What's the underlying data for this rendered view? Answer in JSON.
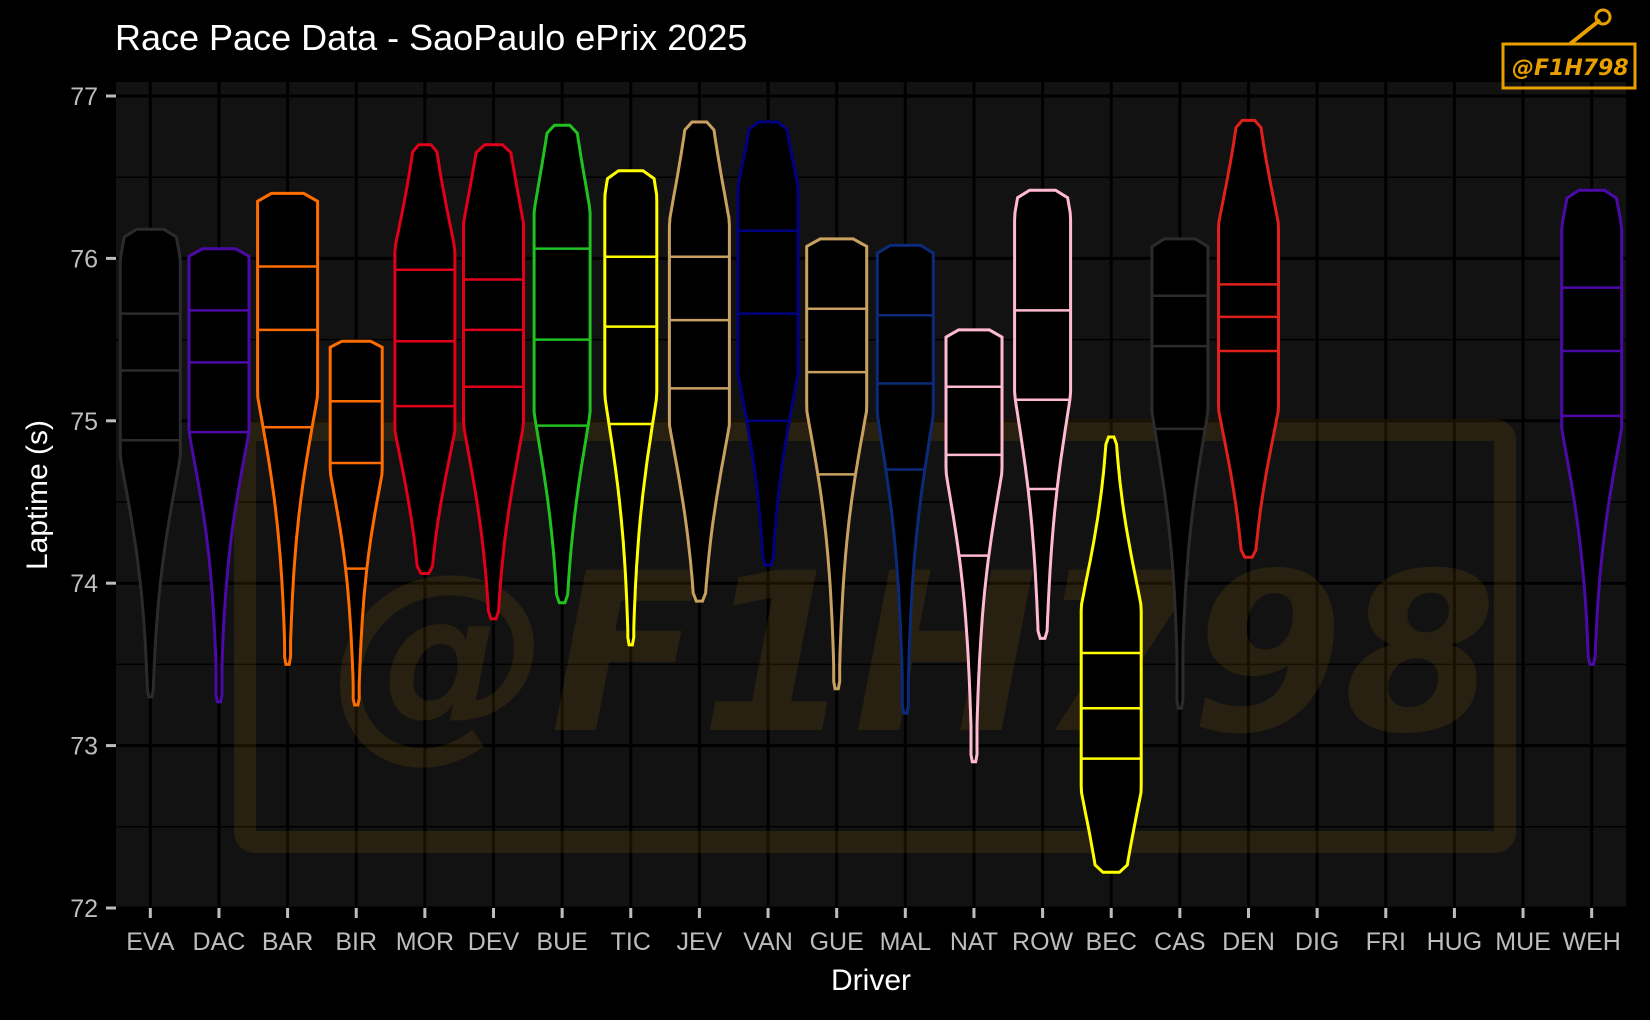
{
  "chart_data": {
    "type": "violin",
    "title": "Race Pace Data - SaoPaulo ePrix 2025",
    "xlabel": "Driver",
    "ylabel": "Laptime (s)",
    "ylim": [
      72,
      77
    ],
    "yticks": [
      72,
      73,
      74,
      75,
      76,
      77
    ],
    "grid": true,
    "categories": [
      "EVA",
      "DAC",
      "BAR",
      "BIR",
      "MOR",
      "DEV",
      "BUE",
      "TIC",
      "JEV",
      "VAN",
      "GUE",
      "MAL",
      "NAT",
      "ROW",
      "BEC",
      "CAS",
      "DEN",
      "DIG",
      "FRI",
      "HUG",
      "MUE",
      "WEH"
    ],
    "series": [
      {
        "driver": "EVA",
        "color": "#2b2b2b",
        "min": 73.3,
        "max": 76.18,
        "q1": 74.88,
        "median": 75.31,
        "q3": 75.66,
        "mode": 75.4,
        "max_half_width": 30
      },
      {
        "driver": "DAC",
        "color": "#4b0aa8",
        "min": 73.27,
        "max": 76.06,
        "q1": 74.93,
        "median": 75.36,
        "q3": 75.68,
        "mode": 75.55,
        "max_half_width": 30
      },
      {
        "driver": "BAR",
        "color": "#ff6d00",
        "min": 73.5,
        "max": 76.4,
        "q1": 74.96,
        "median": 75.56,
        "q3": 75.95,
        "mode": 75.8,
        "max_half_width": 30
      },
      {
        "driver": "BIR",
        "color": "#ff6d00",
        "min": 73.25,
        "max": 75.49,
        "q1": 74.09,
        "median": 74.74,
        "q3": 75.12,
        "mode": 75.2,
        "max_half_width": 26
      },
      {
        "driver": "MOR",
        "color": "#e0001a",
        "min": 74.06,
        "max": 76.7,
        "q1": 75.09,
        "median": 75.49,
        "q3": 75.93,
        "mode": 75.5,
        "max_half_width": 30
      },
      {
        "driver": "DEV",
        "color": "#e0001a",
        "min": 73.78,
        "max": 76.7,
        "q1": 75.21,
        "median": 75.56,
        "q3": 75.87,
        "mode": 75.6,
        "max_half_width": 30
      },
      {
        "driver": "BUE",
        "color": "#1fc21f",
        "min": 73.88,
        "max": 76.82,
        "q1": 74.97,
        "median": 75.5,
        "q3": 76.06,
        "mode": 75.7,
        "max_half_width": 28
      },
      {
        "driver": "TIC",
        "color": "#ffff00",
        "min": 73.62,
        "max": 76.54,
        "q1": 74.98,
        "median": 75.58,
        "q3": 76.01,
        "mode": 75.8,
        "max_half_width": 26
      },
      {
        "driver": "JEV",
        "color": "#c8a060",
        "min": 73.89,
        "max": 76.84,
        "q1": 75.2,
        "median": 75.62,
        "q3": 76.01,
        "mode": 75.6,
        "max_half_width": 30
      },
      {
        "driver": "VAN",
        "color": "#000080",
        "min": 74.11,
        "max": 76.84,
        "q1": 75.0,
        "median": 75.66,
        "q3": 76.17,
        "mode": 75.9,
        "max_half_width": 30
      },
      {
        "driver": "GUE",
        "color": "#c8a060",
        "min": 73.35,
        "max": 76.12,
        "q1": 74.67,
        "median": 75.3,
        "q3": 75.69,
        "mode": 75.7,
        "max_half_width": 30
      },
      {
        "driver": "MAL",
        "color": "#0c2a7a",
        "min": 73.2,
        "max": 76.08,
        "q1": 74.7,
        "median": 75.23,
        "q3": 75.65,
        "mode": 75.7,
        "max_half_width": 28
      },
      {
        "driver": "NAT",
        "color": "#ffbad2",
        "min": 72.9,
        "max": 75.56,
        "q1": 74.17,
        "median": 74.79,
        "q3": 75.21,
        "mode": 75.3,
        "max_half_width": 28
      },
      {
        "driver": "ROW",
        "color": "#ffbad2",
        "min": 73.66,
        "max": 76.42,
        "q1": 74.58,
        "median": 75.13,
        "q3": 75.68,
        "mode": 75.8,
        "max_half_width": 28
      },
      {
        "driver": "BEC",
        "color": "#ffff00",
        "min": 72.22,
        "max": 74.9,
        "q1": 72.92,
        "median": 73.23,
        "q3": 73.57,
        "mode": 73.3,
        "max_half_width": 30
      },
      {
        "driver": "CAS",
        "color": "#2b2b2b",
        "min": 73.23,
        "max": 76.12,
        "q1": 74.95,
        "median": 75.46,
        "q3": 75.77,
        "mode": 75.7,
        "max_half_width": 28
      },
      {
        "driver": "DEN",
        "color": "#e0201a",
        "min": 74.16,
        "max": 76.85,
        "q1": 75.43,
        "median": 75.64,
        "q3": 75.84,
        "mode": 75.64,
        "max_half_width": 30
      },
      {
        "driver": "WEH",
        "color": "#4b0aa8",
        "min": 73.5,
        "max": 76.42,
        "q1": 75.03,
        "median": 75.43,
        "q3": 75.82,
        "mode": 75.6,
        "max_half_width": 30
      }
    ]
  },
  "watermark": {
    "text": "@F1H798",
    "color": "#e8a000"
  },
  "theme": {
    "background": "#000000",
    "panel": "#121212",
    "grid": "#000000",
    "text": "#ffffff",
    "tick_text": "#bdbdbd"
  }
}
